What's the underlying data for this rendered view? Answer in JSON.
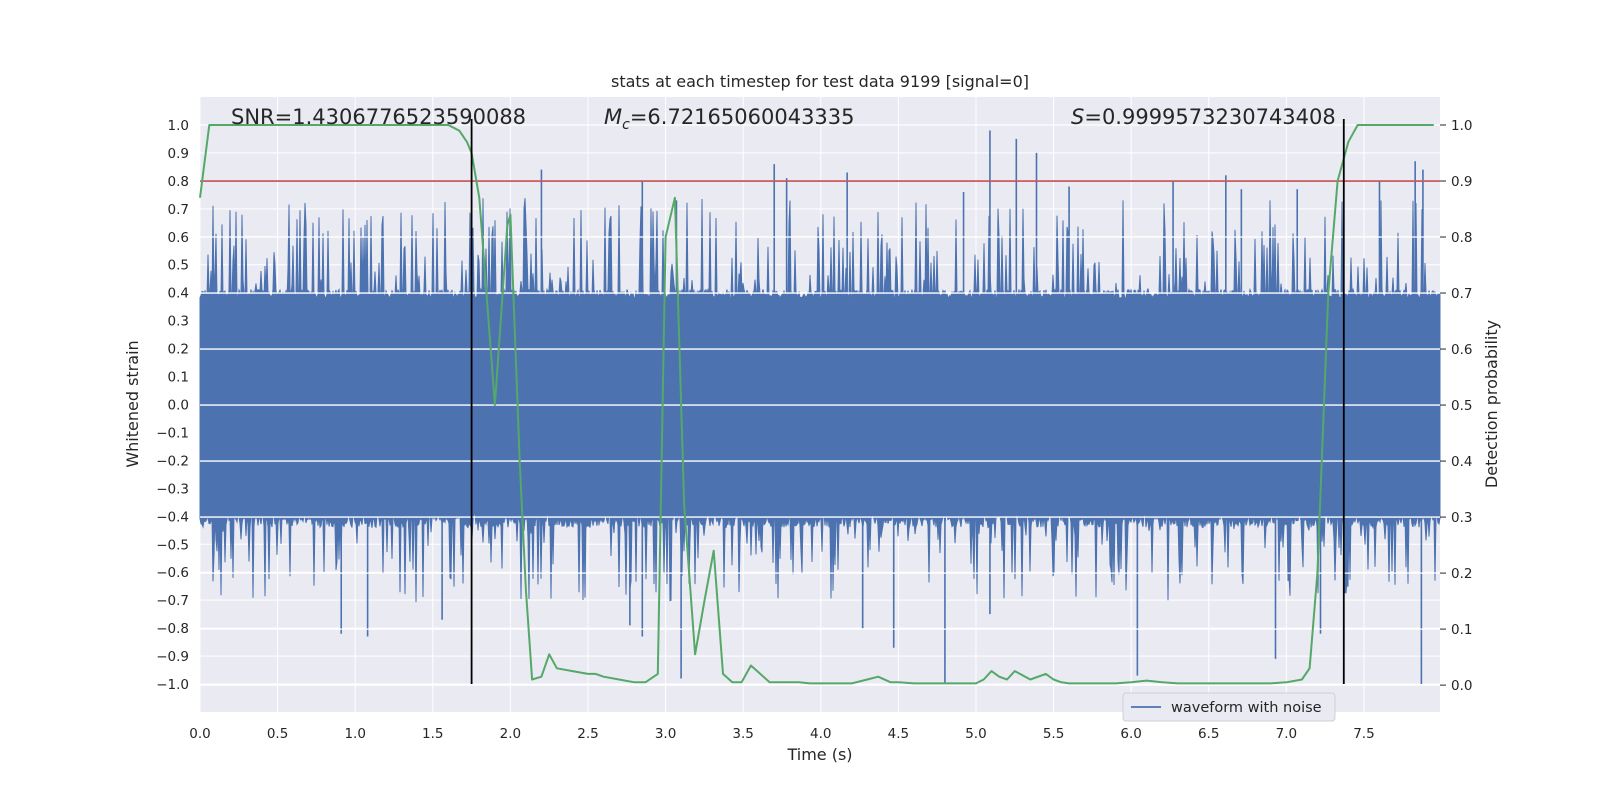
{
  "chart_data": {
    "type": "line",
    "title": "stats at each timestep for test data 9199 [signal=0]",
    "xlabel": "Time (s)",
    "ylabel": "Whitened strain",
    "y2label": "Detection probability",
    "xlim": [
      0.0,
      7.99
    ],
    "ylim": [
      -1.1,
      1.1
    ],
    "y2lim": [
      -0.048,
      1.05
    ],
    "xticks": [
      "0.0",
      "0.5",
      "1.0",
      "1.5",
      "2.0",
      "2.5",
      "3.0",
      "3.5",
      "4.0",
      "4.5",
      "5.0",
      "5.5",
      "6.0",
      "6.5",
      "7.0",
      "7.5"
    ],
    "yticks": [
      "1.0",
      "0.9",
      "0.8",
      "0.7",
      "0.6",
      "0.5",
      "0.4",
      "0.3",
      "0.2",
      "0.1",
      "0.0",
      "-0.1",
      "-0.2",
      "-0.3",
      "-0.4",
      "-0.5",
      "-0.6",
      "-0.7",
      "-0.8",
      "-0.9",
      "-1.0"
    ],
    "y2ticks": [
      "1.0",
      "0.9",
      "0.8",
      "0.7",
      "0.6",
      "0.5",
      "0.4",
      "0.3",
      "0.2",
      "0.1",
      "0.0"
    ],
    "annotations": {
      "snr": "SNR=1.4306776523590088",
      "mc_symbol": "M",
      "mc_sub": "c",
      "mc_value": "=6.72165060043335",
      "s_symbol": "S",
      "s_value": "=0.9999573230743408"
    },
    "threshold": {
      "value": 0.9,
      "color": "#c44e52"
    },
    "detection_window_edges": [
      1.75,
      7.37
    ],
    "legend": {
      "label": "waveform with noise",
      "location": "lower right"
    },
    "series": [
      {
        "name": "waveform with noise",
        "axis": "left",
        "color": "#4c72b0",
        "render": "dense noise band",
        "envelope": {
          "t_start": 0.0,
          "t_end": 7.99,
          "typical_min": -0.42,
          "typical_max": 0.4,
          "extreme_min": -1.0,
          "extreme_max": 0.98
        },
        "spikes": [
          {
            "t": 2.2,
            "v": 0.84
          },
          {
            "t": 2.85,
            "v": 0.8
          },
          {
            "t": 3.07,
            "v": 0.73
          },
          {
            "t": 3.7,
            "v": 0.86
          },
          {
            "t": 3.78,
            "v": 0.81
          },
          {
            "t": 4.17,
            "v": 0.83
          },
          {
            "t": 4.92,
            "v": 0.76
          },
          {
            "t": 5.09,
            "v": 0.98
          },
          {
            "t": 5.26,
            "v": 0.95
          },
          {
            "t": 5.39,
            "v": 0.9
          },
          {
            "t": 5.6,
            "v": 0.78
          },
          {
            "t": 6.27,
            "v": 0.8
          },
          {
            "t": 6.61,
            "v": 0.82
          },
          {
            "t": 6.71,
            "v": 0.77
          },
          {
            "t": 7.07,
            "v": 0.77
          },
          {
            "t": 7.6,
            "v": 0.8
          },
          {
            "t": 7.83,
            "v": 0.87
          },
          {
            "t": 7.88,
            "v": 0.84
          },
          {
            "t": 0.91,
            "v": -0.82
          },
          {
            "t": 1.08,
            "v": -0.83
          },
          {
            "t": 1.56,
            "v": -0.77
          },
          {
            "t": 2.77,
            "v": -0.79
          },
          {
            "t": 2.85,
            "v": -0.83
          },
          {
            "t": 3.1,
            "v": -0.98
          },
          {
            "t": 4.27,
            "v": -0.8
          },
          {
            "t": 4.47,
            "v": -0.87
          },
          {
            "t": 4.8,
            "v": -1.0
          },
          {
            "t": 5.09,
            "v": -0.75
          },
          {
            "t": 6.04,
            "v": -0.97
          },
          {
            "t": 6.93,
            "v": -0.91
          },
          {
            "t": 7.22,
            "v": -0.82
          },
          {
            "t": 7.87,
            "v": -1.0
          }
        ]
      },
      {
        "name": "detection probability",
        "axis": "right",
        "color": "#55a868",
        "t": [
          0.0,
          0.06,
          0.12,
          0.2,
          0.3,
          0.5,
          0.8,
          1.0,
          1.3,
          1.5,
          1.6,
          1.67,
          1.72,
          1.75,
          1.8,
          1.9,
          1.98,
          2.0,
          2.06,
          2.1,
          2.14,
          2.2,
          2.25,
          2.3,
          2.4,
          2.5,
          2.55,
          2.6,
          2.7,
          2.8,
          2.87,
          2.95,
          3.0,
          3.06,
          3.12,
          3.19,
          3.25,
          3.31,
          3.37,
          3.43,
          3.49,
          3.55,
          3.61,
          3.67,
          3.74,
          3.8,
          3.86,
          3.93,
          4.0,
          4.1,
          4.2,
          4.3,
          4.37,
          4.45,
          4.5,
          4.6,
          4.7,
          4.8,
          4.9,
          5.0,
          5.05,
          5.1,
          5.15,
          5.2,
          5.25,
          5.35,
          5.45,
          5.5,
          5.55,
          5.6,
          5.7,
          5.8,
          5.9,
          6.0,
          6.1,
          6.2,
          6.3,
          6.4,
          6.5,
          6.6,
          6.7,
          6.8,
          6.9,
          7.0,
          7.1,
          7.15,
          7.2,
          7.27,
          7.33,
          7.4,
          7.46,
          7.52,
          7.6,
          7.7,
          7.8,
          7.95
        ],
        "values": [
          0.87,
          1.0,
          1.0,
          1.0,
          1.0,
          1.0,
          1.0,
          1.0,
          1.0,
          1.0,
          1.0,
          0.99,
          0.97,
          0.95,
          0.87,
          0.5,
          0.82,
          0.84,
          0.4,
          0.17,
          0.01,
          0.015,
          0.055,
          0.03,
          0.025,
          0.02,
          0.02,
          0.015,
          0.01,
          0.005,
          0.005,
          0.02,
          0.8,
          0.87,
          0.32,
          0.055,
          0.15,
          0.24,
          0.02,
          0.005,
          0.005,
          0.035,
          0.02,
          0.005,
          0.005,
          0.005,
          0.005,
          0.003,
          0.003,
          0.003,
          0.003,
          0.01,
          0.015,
          0.005,
          0.005,
          0.003,
          0.003,
          0.003,
          0.003,
          0.003,
          0.01,
          0.025,
          0.015,
          0.01,
          0.025,
          0.01,
          0.02,
          0.01,
          0.005,
          0.003,
          0.003,
          0.003,
          0.003,
          0.005,
          0.008,
          0.005,
          0.003,
          0.003,
          0.003,
          0.003,
          0.003,
          0.003,
          0.003,
          0.005,
          0.01,
          0.03,
          0.2,
          0.7,
          0.9,
          0.97,
          1.0,
          1.0,
          1.0,
          1.0,
          1.0,
          1.0
        ]
      }
    ]
  }
}
